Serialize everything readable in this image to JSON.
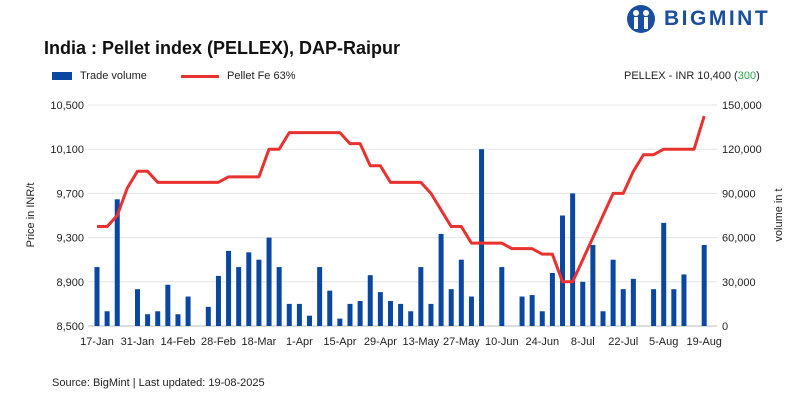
{
  "header": {
    "title": "India : Pellet index (PELLEX), DAP-Raipur",
    "logo_text": "BIGMINT",
    "price_summary": {
      "prefix": "PELLEX - INR 10,400 (",
      "change": "300",
      "suffix": ")"
    }
  },
  "colors": {
    "bars": "#0a47a0",
    "line": "#e8322f",
    "change": "#2ca84a",
    "brand": "#1a4fa0"
  },
  "footer": {
    "source": "Source: BigMint | Last updated: 19-08-2025"
  },
  "chart_data": {
    "type": "bar+line",
    "title": "India : Pellet index (PELLEX), DAP-Raipur",
    "ylabel_left": "Price in INR/t",
    "ylabel_right": "volume in t",
    "ylim_left": [
      8500,
      10500
    ],
    "ylim_right": [
      0,
      150000
    ],
    "yticks_left": [
      "8,500",
      "8,900",
      "9,300",
      "9,700",
      "10,100",
      "10,500"
    ],
    "yticks_right": [
      "0",
      "30,000",
      "60,000",
      "90,000",
      "120,000",
      "150,000"
    ],
    "xtick_labels": [
      "17-Jan",
      "31-Jan",
      "14-Feb",
      "28-Feb",
      "18-Mar",
      "1-Apr",
      "15-Apr",
      "29-Apr",
      "13-May",
      "27-May",
      "10-Jun",
      "24-Jun",
      "8-Jul",
      "22-Jul",
      "5-Aug",
      "19-Aug"
    ],
    "legend": [
      "Trade volume",
      "Pellet Fe 63%"
    ],
    "legend_position": "top-left",
    "grid": true,
    "series": [
      {
        "name": "Trade volume",
        "type": "bar",
        "axis": "right",
        "values": [
          40000,
          10000,
          86000,
          0,
          25000,
          8000,
          10000,
          28000,
          8000,
          20000,
          0,
          13000,
          34000,
          51000,
          40000,
          50000,
          45000,
          60000,
          40000,
          15000,
          15000,
          7000,
          40000,
          24000,
          5000,
          15000,
          17000,
          34500,
          23000,
          17000,
          15000,
          10000,
          40000,
          15000,
          62500,
          25000,
          45000,
          20000,
          120000,
          0,
          40000,
          0,
          20000,
          21000,
          10000,
          36000,
          75000,
          90000,
          30000,
          55000,
          10000,
          45000,
          25000,
          32000,
          0,
          25000,
          70000,
          25000,
          35000,
          0,
          55000
        ]
      },
      {
        "name": "Pellet Fe 63%",
        "type": "line",
        "axis": "left",
        "values": [
          9400,
          9400,
          9500,
          9750,
          9900,
          9900,
          9800,
          9800,
          9800,
          9800,
          9800,
          9800,
          9800,
          9850,
          9850,
          9850,
          9850,
          10100,
          10100,
          10250,
          10250,
          10250,
          10250,
          10250,
          10250,
          10150,
          10150,
          9950,
          9950,
          9800,
          9800,
          9800,
          9800,
          9700,
          9550,
          9400,
          9400,
          9250,
          9250,
          9250,
          9250,
          9200,
          9200,
          9200,
          9150,
          9150,
          8900,
          8900,
          9100,
          9300,
          9500,
          9700,
          9700,
          9900,
          10050,
          10050,
          10100,
          10100,
          10100,
          10100,
          10400
        ]
      }
    ]
  }
}
